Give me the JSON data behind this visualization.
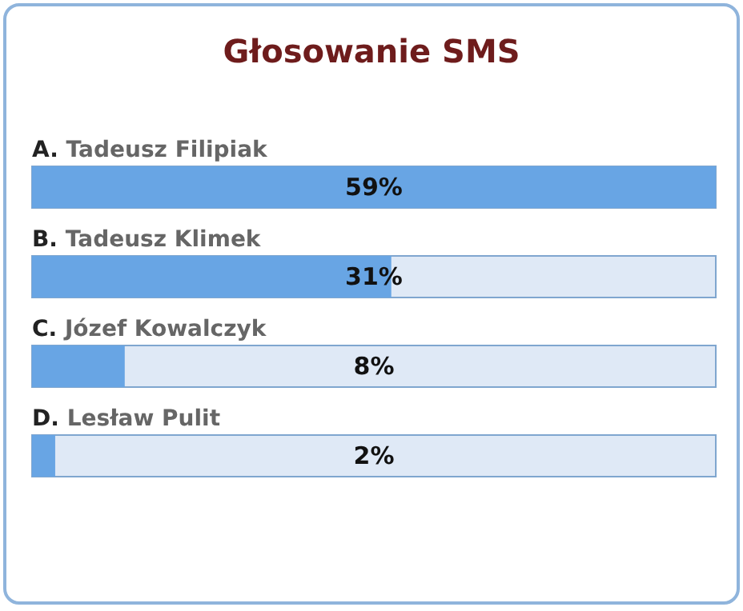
{
  "chart_data": {
    "type": "bar",
    "orientation": "horizontal",
    "title": "Głosowanie SMS",
    "categories": [
      "A. Tadeusz Filipiak",
      "B. Tadeusz Klimek",
      "C. Józef Kowalczyk",
      "D. Lesław Pulit"
    ],
    "values": [
      59,
      31,
      8,
      2
    ],
    "value_labels": [
      "59%",
      "31%",
      "8%",
      "2%"
    ],
    "color": "#68a5e4"
  }
}
